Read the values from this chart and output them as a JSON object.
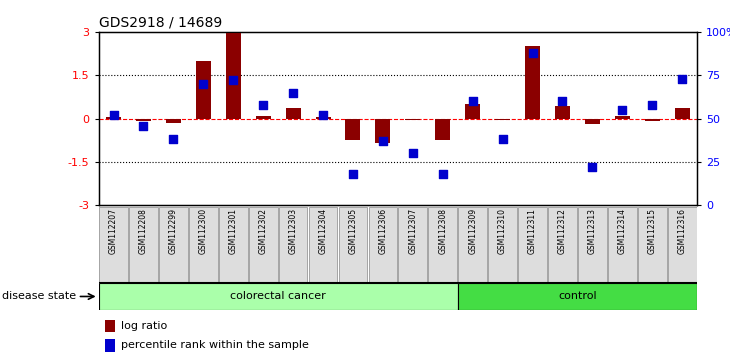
{
  "title": "GDS2918 / 14689",
  "samples": [
    "GSM112207",
    "GSM112208",
    "GSM112299",
    "GSM112300",
    "GSM112301",
    "GSM112302",
    "GSM112303",
    "GSM112304",
    "GSM112305",
    "GSM112306",
    "GSM112307",
    "GSM112308",
    "GSM112309",
    "GSM112310",
    "GSM112311",
    "GSM112312",
    "GSM112313",
    "GSM112314",
    "GSM112315",
    "GSM112316"
  ],
  "log_ratio": [
    0.05,
    -0.1,
    -0.15,
    2.0,
    2.95,
    0.1,
    0.35,
    0.05,
    -0.75,
    -0.85,
    -0.05,
    -0.75,
    0.5,
    -0.05,
    2.5,
    0.45,
    -0.2,
    0.1,
    -0.08,
    0.35
  ],
  "percentile": [
    52,
    46,
    38,
    70,
    72,
    58,
    65,
    52,
    18,
    37,
    30,
    18,
    60,
    38,
    88,
    60,
    22,
    55,
    58,
    73
  ],
  "colorectal_count": 12,
  "control_count": 8,
  "ylim": [
    -3,
    3
  ],
  "yticks_left": [
    -3,
    -1.5,
    0,
    1.5,
    3
  ],
  "yticks_right": [
    0,
    25,
    50,
    75,
    100
  ],
  "bar_color": "#8B0000",
  "dot_color": "#0000CD",
  "colorectal_color": "#AAFFAA",
  "control_color": "#44DD44",
  "bg_color": "#FFFFFF",
  "label_log_ratio": "log ratio",
  "label_percentile": "percentile rank within the sample",
  "colorectal_label": "colorectal cancer",
  "control_label": "control",
  "disease_state_label": "disease state"
}
